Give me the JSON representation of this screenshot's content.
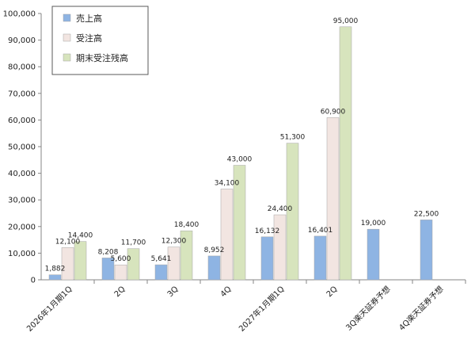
{
  "chart_data": {
    "type": "bar",
    "categories": [
      "2026年1月期1Q",
      "2Q",
      "3Q",
      "4Q",
      "2027年1月期1Q",
      "2Q",
      "3Q楽天証券予想",
      "4Q楽天証券予想"
    ],
    "series": [
      {
        "name": "売上高",
        "color": "#8eb4e3",
        "values": [
          1882,
          8208,
          5641,
          8952,
          16132,
          16401,
          19000,
          22500
        ]
      },
      {
        "name": "受注高",
        "color": "#f2e5e1",
        "values": [
          12100,
          5600,
          12300,
          34100,
          24400,
          60900,
          null,
          null
        ]
      },
      {
        "name": "期末受注残高",
        "color": "#d7e4bd",
        "values": [
          14400,
          11700,
          18400,
          43000,
          51300,
          95000,
          null,
          null
        ]
      }
    ],
    "ylim": [
      0,
      100000
    ],
    "y_ticks": [
      "0",
      "10,000",
      "20,000",
      "30,000",
      "40,000",
      "50,000",
      "60,000",
      "70,000",
      "80,000",
      "90,000",
      "100,000"
    ],
    "data_labels": [
      [
        "1,882",
        "8,208",
        "5,641",
        "8,952",
        "16,132",
        "16,401",
        "19,000",
        "22,500"
      ],
      [
        "12,100",
        "5,600",
        "12,300",
        "34,100",
        "24,400",
        "60,900",
        null,
        null
      ],
      [
        "14,400",
        "11,700",
        "18,400",
        "43,000",
        "51,300",
        "95,000",
        null,
        null
      ]
    ],
    "grid": false,
    "legend_position": "top-left"
  }
}
